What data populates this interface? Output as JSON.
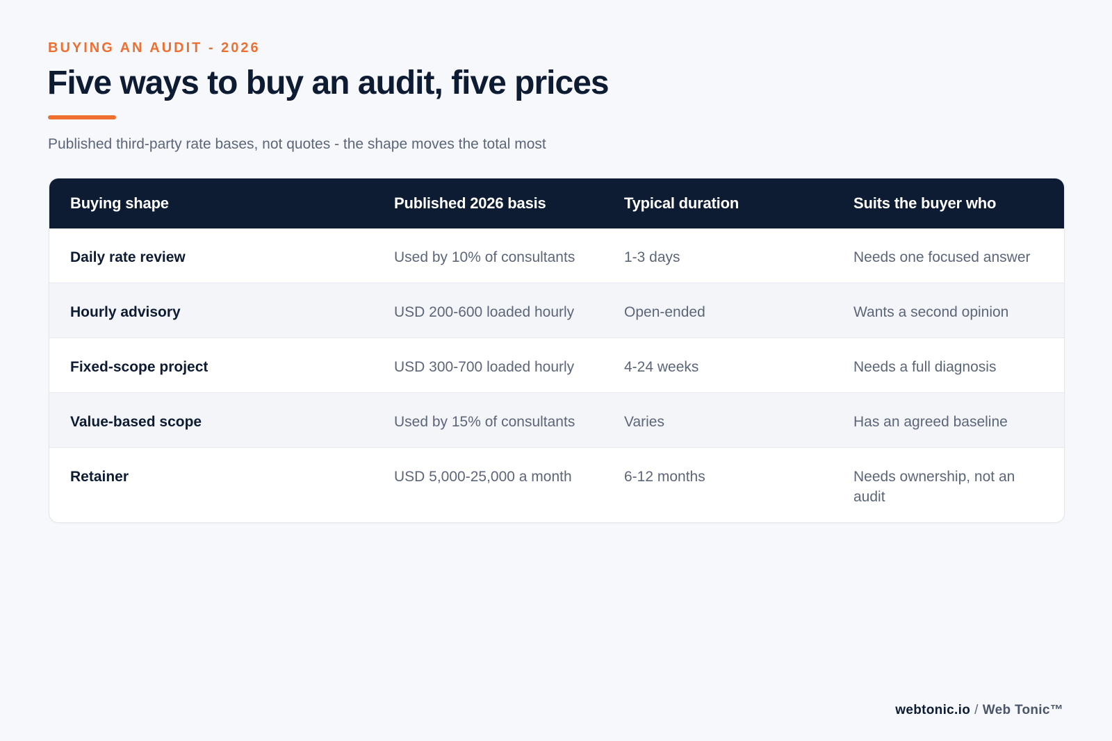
{
  "header": {
    "eyebrow": "BUYING AN AUDIT - 2026",
    "title": "Five ways to buy an audit, five prices",
    "subtitle": "Published third-party rate bases, not quotes - the shape moves the total most"
  },
  "table": {
    "columns": [
      "Buying shape",
      "Published 2026 basis",
      "Typical duration",
      "Suits the buyer who"
    ],
    "rows": [
      {
        "shape": "Daily rate review",
        "basis": "Used by 10% of consultants",
        "duration": "1-3 days",
        "suits": "Needs one focused answer"
      },
      {
        "shape": "Hourly advisory",
        "basis": "USD 200-600 loaded hourly",
        "duration": "Open-ended",
        "suits": "Wants a second opinion"
      },
      {
        "shape": "Fixed-scope project",
        "basis": "USD 300-700 loaded hourly",
        "duration": "4-24 weeks",
        "suits": "Needs a full diagnosis"
      },
      {
        "shape": "Value-based scope",
        "basis": "Used by 15% of consultants",
        "duration": "Varies",
        "suits": "Has an agreed baseline"
      },
      {
        "shape": "Retainer",
        "basis": "USD 5,000-25,000 a month",
        "duration": "6-12 months",
        "suits": "Needs ownership, not an audit"
      }
    ]
  },
  "footer": {
    "site": "webtonic.io",
    "separator": "/",
    "brand": "Web Tonic™"
  },
  "colors": {
    "accent": "#ee7030",
    "navy": "#0d1b33",
    "muted_text": "#5c6678",
    "background": "#f6f8fb"
  }
}
